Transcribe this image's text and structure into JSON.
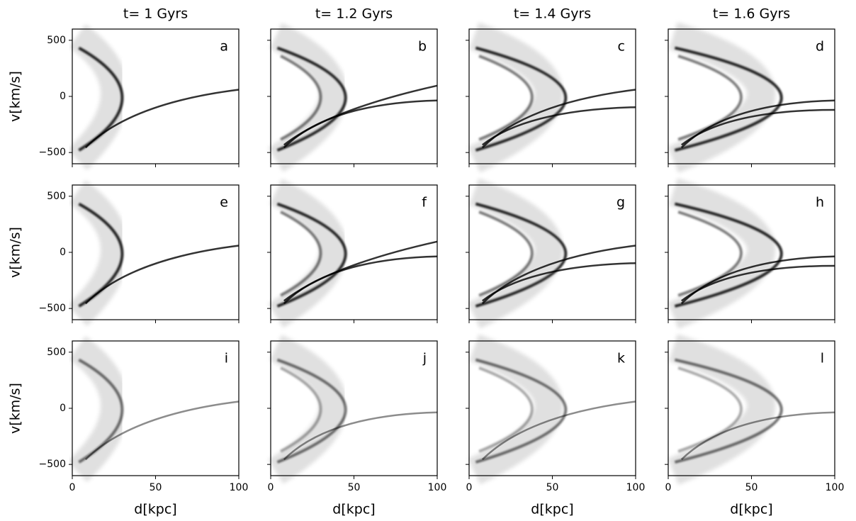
{
  "chart_data": [
    {
      "type": "density",
      "title": "t= 1 Gyrs",
      "label": "a",
      "ylabel": "v[km/s]",
      "xlim": [
        0,
        100
      ],
      "ylim": [
        -600,
        600
      ],
      "xticks": [
        0,
        50,
        100
      ],
      "yticks": [
        {
          "value": -500,
          "label": "−500"
        },
        0,
        500
      ]
    },
    {
      "type": "density",
      "title": "t= 1.2 Gyrs",
      "label": "b",
      "xlim": [
        0,
        100
      ],
      "ylim": [
        -600,
        600
      ],
      "xticks": [
        0,
        50,
        100
      ],
      "yticks": [
        {
          "value": -500,
          "label": "−500"
        },
        0,
        500
      ]
    },
    {
      "type": "density",
      "title": "t= 1.4 Gyrs",
      "label": "c",
      "xlim": [
        0,
        100
      ],
      "ylim": [
        -600,
        600
      ],
      "xticks": [
        0,
        50,
        100
      ],
      "yticks": [
        {
          "value": -500,
          "label": "−500"
        },
        0,
        500
      ]
    },
    {
      "type": "density",
      "title": "t= 1.6 Gyrs",
      "label": "d",
      "xlim": [
        0,
        100
      ],
      "ylim": [
        -600,
        600
      ],
      "xticks": [
        0,
        50,
        100
      ],
      "yticks": [
        {
          "value": -500,
          "label": "−500"
        },
        0,
        500
      ]
    },
    {
      "type": "density",
      "label": "e",
      "ylabel": "v[km/s]",
      "xlim": [
        0,
        100
      ],
      "ylim": [
        -600,
        600
      ],
      "xticks": [
        0,
        50,
        100
      ],
      "yticks": [
        {
          "value": -500,
          "label": "−500"
        },
        0,
        500
      ]
    },
    {
      "type": "density",
      "label": "f",
      "xlim": [
        0,
        100
      ],
      "ylim": [
        -600,
        600
      ],
      "xticks": [
        0,
        50,
        100
      ],
      "yticks": [
        {
          "value": -500,
          "label": "−500"
        },
        0,
        500
      ]
    },
    {
      "type": "density",
      "label": "g",
      "xlim": [
        0,
        100
      ],
      "ylim": [
        -600,
        600
      ],
      "xticks": [
        0,
        50,
        100
      ],
      "yticks": [
        {
          "value": -500,
          "label": "−500"
        },
        0,
        500
      ]
    },
    {
      "type": "density",
      "label": "h",
      "xlim": [
        0,
        100
      ],
      "ylim": [
        -600,
        600
      ],
      "xticks": [
        0,
        50,
        100
      ],
      "yticks": [
        {
          "value": -500,
          "label": "−500"
        },
        0,
        500
      ]
    },
    {
      "type": "density",
      "label": "i",
      "ylabel": "v[km/s]",
      "xlabel": "d[kpc]",
      "xlim": [
        0,
        100
      ],
      "ylim": [
        -600,
        600
      ],
      "xticks": [
        0,
        50,
        100
      ],
      "yticks": [
        {
          "value": -500,
          "label": "−500"
        },
        0,
        500
      ]
    },
    {
      "type": "density",
      "label": "j",
      "xlabel": "d[kpc]",
      "xlim": [
        0,
        100
      ],
      "ylim": [
        -600,
        600
      ],
      "xticks": [
        0,
        50,
        100
      ],
      "yticks": [
        {
          "value": -500,
          "label": "−500"
        },
        0,
        500
      ]
    },
    {
      "type": "density",
      "label": "k",
      "xlabel": "d[kpc]",
      "xlim": [
        0,
        100
      ],
      "ylim": [
        -600,
        600
      ],
      "xticks": [
        0,
        50,
        100
      ],
      "yticks": [
        {
          "value": -500,
          "label": "−500"
        },
        0,
        500
      ]
    },
    {
      "type": "density",
      "label": "l",
      "xlabel": "d[kpc]",
      "xlim": [
        0,
        100
      ],
      "ylim": [
        -600,
        600
      ],
      "xticks": [
        0,
        50,
        100
      ],
      "yticks": [
        {
          "value": -500,
          "label": "−500"
        },
        0,
        500
      ]
    }
  ]
}
